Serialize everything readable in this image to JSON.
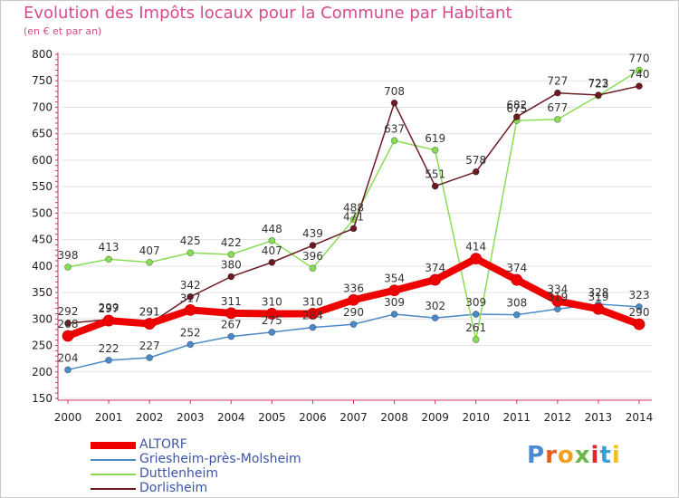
{
  "chart_data": {
    "type": "line",
    "title": "Evolution des Impôts locaux pour la Commune par Habitant",
    "subtitle": "(en € et par an)",
    "x": [
      "2000",
      "2001",
      "2002",
      "2003",
      "2004",
      "2005",
      "2006",
      "2007",
      "2008",
      "2009",
      "2010",
      "2011",
      "2012",
      "2013",
      "2014"
    ],
    "ylim": [
      150,
      800
    ],
    "yticks": [
      150,
      200,
      250,
      300,
      350,
      400,
      450,
      500,
      550,
      600,
      650,
      700,
      750,
      800
    ],
    "grid": "horizontal",
    "legend_position": "bottom-left",
    "series": [
      {
        "name": "ALTORF",
        "color": "#ee0000",
        "values": [
          268,
          297,
          291,
          317,
          311,
          310,
          310,
          336,
          354,
          374,
          414,
          374,
          334,
          319,
          290
        ]
      },
      {
        "name": "Griesheim-près-Molsheim",
        "color": "#4a8ac8",
        "values": [
          204,
          222,
          227,
          252,
          267,
          275,
          284,
          290,
          309,
          302,
          309,
          308,
          319,
          328,
          323
        ]
      },
      {
        "name": "Duttlenheim",
        "color": "#88dd55",
        "values": [
          398,
          413,
          407,
          425,
          422,
          448,
          396,
          488,
          637,
          619,
          261,
          675,
          677,
          722,
          770
        ]
      },
      {
        "name": "Dorlisheim",
        "color": "#6b1a22",
        "values": [
          292,
          299,
          291,
          342,
          380,
          407,
          439,
          471,
          708,
          551,
          578,
          682,
          727,
          723,
          740
        ]
      }
    ]
  },
  "brand": {
    "text": "Proxiti"
  }
}
